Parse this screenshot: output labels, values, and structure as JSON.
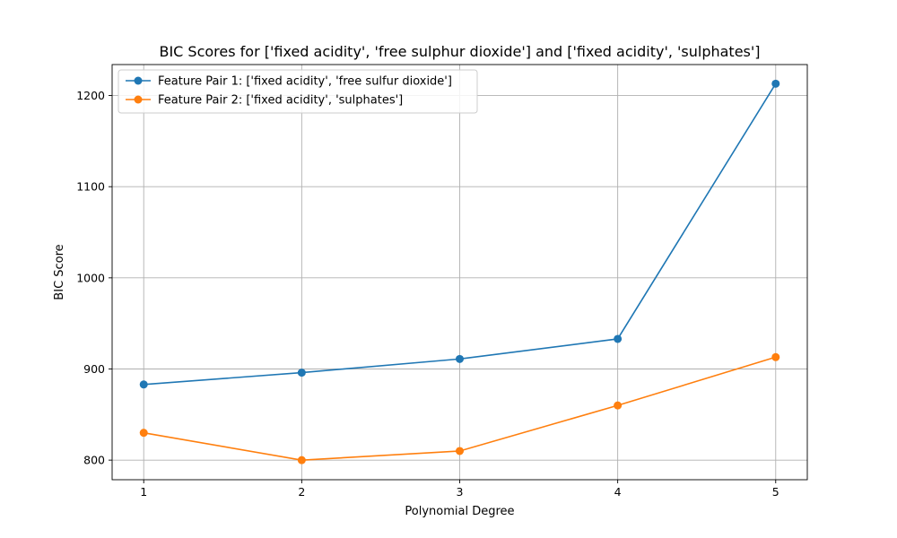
{
  "chart_data": {
    "type": "line",
    "title": "BIC Scores for ['fixed acidity', 'free sulphur dioxide'] and ['fixed acidity', 'sulphates']",
    "xlabel": "Polynomial Degree",
    "ylabel": "BIC Score",
    "x": [
      1,
      2,
      3,
      4,
      5
    ],
    "xticks": [
      1,
      2,
      3,
      4,
      5
    ],
    "yticks": [
      800,
      900,
      1000,
      1100,
      1200
    ],
    "xlim": [
      0.8,
      5.2
    ],
    "ylim": [
      778.5,
      1234
    ],
    "grid": true,
    "legend_position": "top-left",
    "series": [
      {
        "name": "Feature Pair 1: ['fixed acidity', 'free sulfur dioxide']",
        "color": "#1f77b4",
        "values": [
          883,
          896,
          911,
          933,
          1213
        ]
      },
      {
        "name": "Feature Pair 2: ['fixed acidity', 'sulphates']",
        "color": "#ff7f0e",
        "values": [
          830,
          800,
          810,
          860,
          913
        ]
      }
    ]
  }
}
